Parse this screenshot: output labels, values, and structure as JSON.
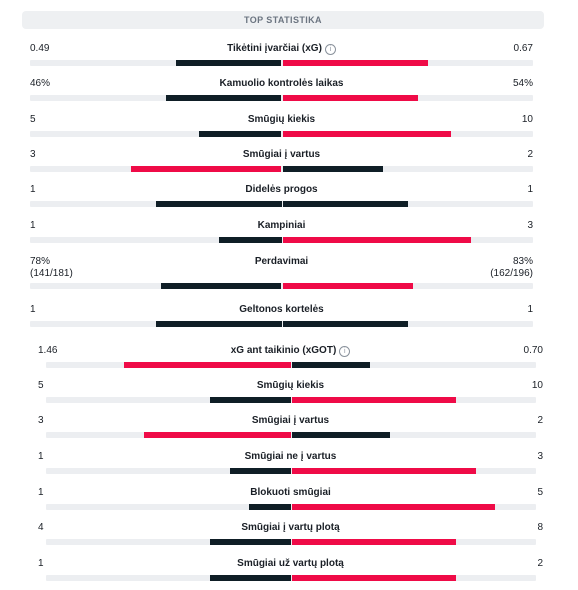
{
  "header": {
    "title": "TOP STATISTIKA"
  },
  "colors": {
    "dark": "#0f1e26",
    "red": "#ef0b47",
    "track": "#eceef1"
  },
  "rows": [
    {
      "label": "Tikėtini įvarčiai (xG)",
      "info_icon": true,
      "left": "0.49",
      "right": "0.67",
      "left_frac": 0.42,
      "right_frac": 0.58,
      "left_color": "dark",
      "right_color": "red"
    },
    {
      "label": "Kamuolio kontrolės laikas",
      "left": "46%",
      "right": "54%",
      "left_frac": 0.46,
      "right_frac": 0.54,
      "left_color": "dark",
      "right_color": "red"
    },
    {
      "label": "Smūgių kiekis",
      "left": "5",
      "right": "10",
      "left_frac": 0.33,
      "right_frac": 0.67,
      "left_color": "dark",
      "right_color": "red"
    },
    {
      "label": "Smūgiai į vartus",
      "left": "3",
      "right": "2",
      "left_frac": 0.6,
      "right_frac": 0.4,
      "left_color": "red",
      "right_color": "dark"
    },
    {
      "label": "Didelės progos",
      "left": "1",
      "right": "1",
      "left_frac": 0.5,
      "right_frac": 0.5,
      "left_color": "dark",
      "right_color": "dark"
    },
    {
      "label": "Kampiniai",
      "left": "1",
      "right": "3",
      "left_frac": 0.25,
      "right_frac": 0.75,
      "left_color": "dark",
      "right_color": "red"
    },
    {
      "label": "Perdavimai",
      "left": "78%",
      "right": "83%",
      "left_sub": "(141/181)",
      "right_sub": "(162/196)",
      "left_frac": 0.48,
      "right_frac": 0.52,
      "left_color": "dark",
      "right_color": "red"
    },
    {
      "label": "Geltonos kortelės",
      "left": "1",
      "right": "1",
      "left_frac": 0.5,
      "right_frac": 0.5,
      "left_color": "dark",
      "right_color": "dark"
    },
    {
      "label": "xG ant taikinio (xGOT)",
      "info_icon": true,
      "left": "1.46",
      "right": "0.70",
      "left_frac": 0.68,
      "right_frac": 0.32,
      "left_color": "red",
      "right_color": "dark"
    },
    {
      "label": "Smūgių kiekis",
      "left": "5",
      "right": "10",
      "left_frac": 0.33,
      "right_frac": 0.67,
      "left_color": "dark",
      "right_color": "red"
    },
    {
      "label": "Smūgiai į vartus",
      "left": "3",
      "right": "2",
      "left_frac": 0.6,
      "right_frac": 0.4,
      "left_color": "red",
      "right_color": "dark"
    },
    {
      "label": "Smūgiai ne į vartus",
      "left": "1",
      "right": "3",
      "left_frac": 0.25,
      "right_frac": 0.75,
      "left_color": "dark",
      "right_color": "red"
    },
    {
      "label": "Blokuoti smūgiai",
      "left": "1",
      "right": "5",
      "left_frac": 0.17,
      "right_frac": 0.83,
      "left_color": "dark",
      "right_color": "red"
    },
    {
      "label": "Smūgiai į vartų plotą",
      "left": "4",
      "right": "8",
      "left_frac": 0.33,
      "right_frac": 0.67,
      "left_color": "dark",
      "right_color": "red"
    },
    {
      "label": "Smūgiai už vartų plotą",
      "left": "1",
      "right": "2",
      "left_frac": 0.33,
      "right_frac": 0.67,
      "left_color": "dark",
      "right_color": "red"
    }
  ]
}
